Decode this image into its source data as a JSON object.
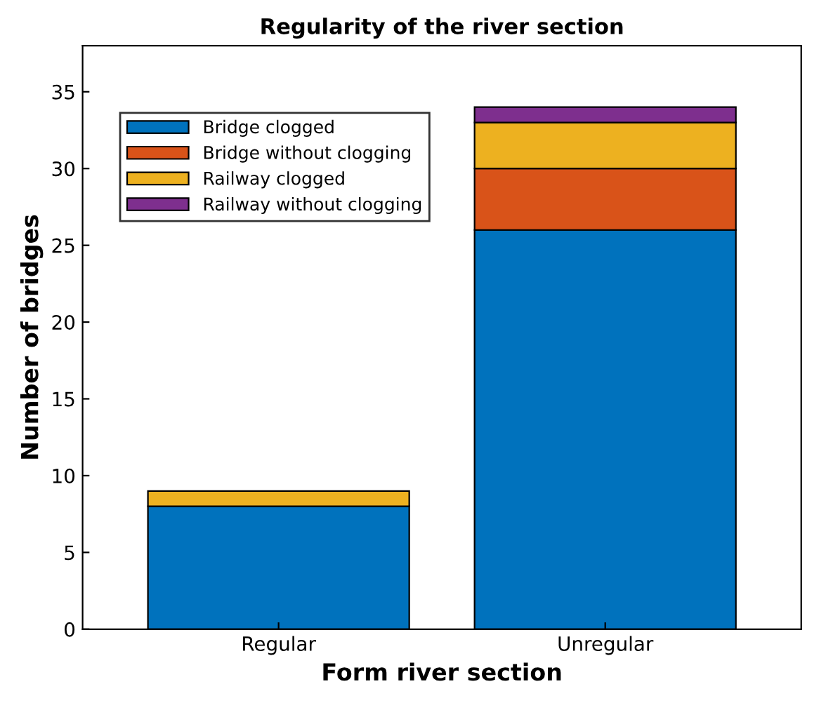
{
  "chart_data": {
    "type": "bar",
    "title": "Regularity of the river section",
    "xlabel": "Form river section",
    "ylabel": "Number of bridges",
    "categories": [
      "Regular",
      "Unregular"
    ],
    "stacked": true,
    "series": [
      {
        "name": "Bridge clogged",
        "color": "#0072bd",
        "values": [
          8,
          26
        ]
      },
      {
        "name": "Bridge without clogging",
        "color": "#d95319",
        "values": [
          null,
          4
        ]
      },
      {
        "name": "Railway clogged",
        "color": "#edb120",
        "values": [
          1,
          3
        ]
      },
      {
        "name": "Railway without clogging",
        "color": "#7e2f8e",
        "values": [
          null,
          1
        ]
      }
    ],
    "ylim": [
      0,
      38
    ],
    "yticks": [
      0,
      5,
      10,
      15,
      20,
      25,
      30,
      35
    ],
    "grid": false,
    "legend": "top left"
  }
}
